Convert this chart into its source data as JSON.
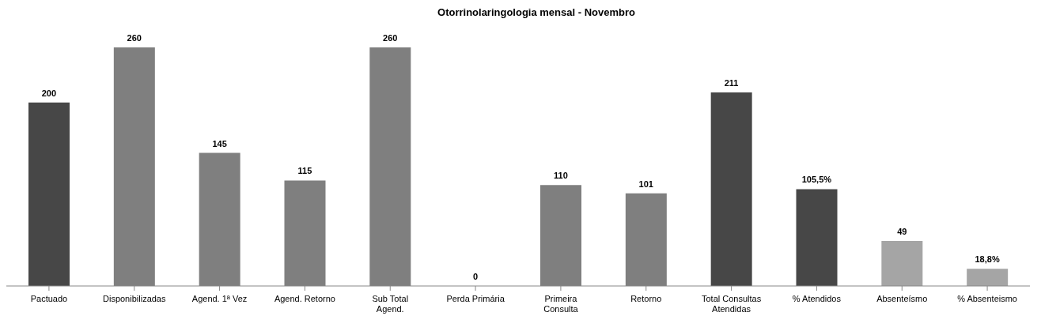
{
  "chart_data": {
    "type": "bar",
    "title": "Otorrinolaringologia mensal - Novembro",
    "categories": [
      "Pactuado",
      "Disponibilizadas",
      "Agend. 1ª Vez",
      "Agend. Retorno",
      "Sub Total Agend.",
      "Perda Primária",
      "Primeira Consulta",
      "Retorno",
      "Total Consultas Atendidas",
      "% Atendidos",
      "Absenteísmo",
      "% Absenteismo"
    ],
    "values": [
      200,
      260,
      145,
      115,
      260,
      0,
      110,
      101,
      211,
      105.5,
      49,
      18.8
    ],
    "value_labels": [
      "200",
      "260",
      "145",
      "115",
      "260",
      "0",
      "110",
      "101",
      "211",
      "105,5%",
      "49",
      "18,8%"
    ],
    "colors": [
      "#474747",
      "#7f7f7f",
      "#7f7f7f",
      "#7f7f7f",
      "#7f7f7f",
      "#7f7f7f",
      "#7f7f7f",
      "#7f7f7f",
      "#474747",
      "#474747",
      "#a5a5a5",
      "#a5a5a5"
    ],
    "grid": false,
    "legend": false
  }
}
